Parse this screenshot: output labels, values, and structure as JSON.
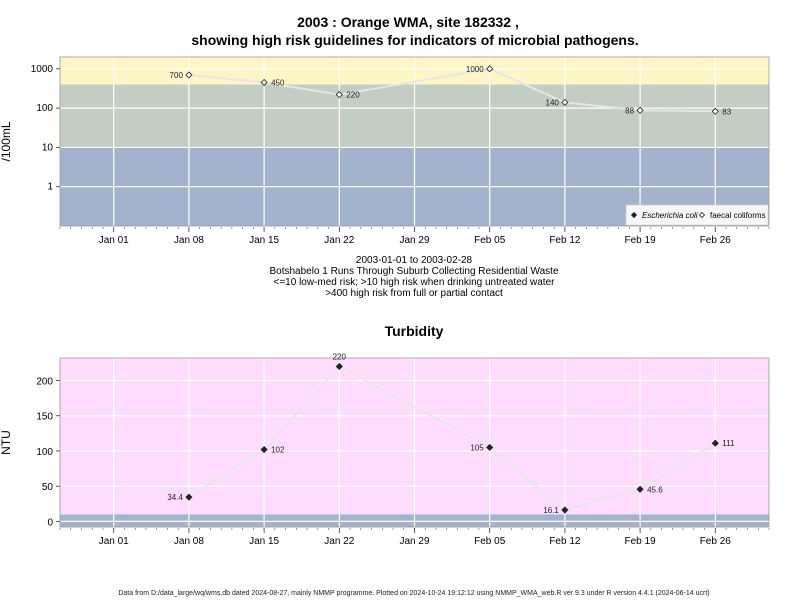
{
  "chart_data": [
    {
      "type": "line",
      "title_line1": "2003 : Orange WMA, site 182332 ,",
      "title_line2": "showing high risk guidelines for indicators of microbial pathogens.",
      "ylabel": "/100mL",
      "yscale": "log",
      "ylim": [
        0.1,
        2000
      ],
      "yticks": [
        {
          "value": 1,
          "label": "1"
        },
        {
          "value": 10,
          "label": "10"
        },
        {
          "value": 100,
          "label": "100"
        },
        {
          "value": 1000,
          "label": "1000"
        }
      ],
      "xlim": [
        "2002-12-27",
        "2003-03-03"
      ],
      "xticks": [
        {
          "date": "2003-01-01",
          "label": "Jan 01"
        },
        {
          "date": "2003-01-08",
          "label": "Jan 08"
        },
        {
          "date": "2003-01-15",
          "label": "Jan 15"
        },
        {
          "date": "2003-01-22",
          "label": "Jan 22"
        },
        {
          "date": "2003-01-29",
          "label": "Jan 29"
        },
        {
          "date": "2003-02-05",
          "label": "Feb 05"
        },
        {
          "date": "2003-02-12",
          "label": "Feb 12"
        },
        {
          "date": "2003-02-19",
          "label": "Feb 19"
        },
        {
          "date": "2003-02-26",
          "label": "Feb 26"
        }
      ],
      "bands": [
        {
          "from": 0.1,
          "to": 10,
          "color": "#a3b3cd"
        },
        {
          "from": 10,
          "to": 400,
          "color": "#c3cdc3"
        },
        {
          "from": 400,
          "to": 2000,
          "color": "#fff5c6"
        }
      ],
      "grid": true,
      "series": [
        {
          "name": "faecal coliforms",
          "marker": "open-diamond",
          "line_color": "#e6e6e6",
          "points": [
            {
              "x": "2003-01-08",
              "y": 700,
              "label": "700",
              "side": "left"
            },
            {
              "x": "2003-01-15",
              "y": 450,
              "label": "450",
              "side": "right"
            },
            {
              "x": "2003-01-22",
              "y": 220,
              "label": "220",
              "side": "right"
            },
            {
              "x": "2003-02-05",
              "y": 1000,
              "label": "1000",
              "side": "left"
            },
            {
              "x": "2003-02-12",
              "y": 140,
              "label": "140",
              "side": "left"
            },
            {
              "x": "2003-02-19",
              "y": 88,
              "label": "88",
              "side": "left"
            },
            {
              "x": "2003-02-26",
              "y": 83,
              "label": "83",
              "side": "right"
            }
          ]
        },
        {
          "name": "Escherichia coli",
          "marker": "filled-diamond",
          "points": []
        }
      ],
      "legend": {
        "position": "bottom-right",
        "items": [
          {
            "label": "Escherichia coli",
            "marker": "filled-diamond",
            "italic": true
          },
          {
            "label": "faecal coliforms",
            "marker": "open-diamond",
            "italic": false
          }
        ]
      },
      "caption": [
        "2003-01-01 to 2003-02-28",
        "Botshabelo 1 Runs Through Suburb Collecting Residential Waste",
        "<=10 low-med risk; >10 high risk when drinking untreated water",
        ">400 high risk from full or partial contact"
      ]
    },
    {
      "type": "line",
      "title": "Turbidity",
      "ylabel": "NTU",
      "yscale": "linear",
      "ylim": [
        -8,
        232
      ],
      "yticks": [
        {
          "value": 0,
          "label": "0"
        },
        {
          "value": 50,
          "label": "50"
        },
        {
          "value": 100,
          "label": "100"
        },
        {
          "value": 150,
          "label": "150"
        },
        {
          "value": 200,
          "label": "200"
        }
      ],
      "xlim": [
        "2002-12-27",
        "2003-03-03"
      ],
      "xticks": [
        {
          "date": "2003-01-01",
          "label": "Jan 01"
        },
        {
          "date": "2003-01-08",
          "label": "Jan 08"
        },
        {
          "date": "2003-01-15",
          "label": "Jan 15"
        },
        {
          "date": "2003-01-22",
          "label": "Jan 22"
        },
        {
          "date": "2003-01-29",
          "label": "Jan 29"
        },
        {
          "date": "2003-02-05",
          "label": "Feb 05"
        },
        {
          "date": "2003-02-12",
          "label": "Feb 12"
        },
        {
          "date": "2003-02-19",
          "label": "Feb 19"
        },
        {
          "date": "2003-02-26",
          "label": "Feb 26"
        }
      ],
      "bands": [
        {
          "from": -8,
          "to": 10,
          "color": "#a3b3cd"
        },
        {
          "from": 10,
          "to": 232,
          "color": "#fedcfe"
        }
      ],
      "grid": true,
      "series": [
        {
          "marker": "filled-diamond",
          "line_color": "#e6e6e6",
          "points": [
            {
              "x": "2003-01-08",
              "y": 34.4,
              "label": "34.4",
              "side": "left"
            },
            {
              "x": "2003-01-15",
              "y": 102,
              "label": "102",
              "side": "right"
            },
            {
              "x": "2003-01-22",
              "y": 220,
              "label": "220",
              "side": "above"
            },
            {
              "x": "2003-02-05",
              "y": 105,
              "label": "105",
              "side": "left"
            },
            {
              "x": "2003-02-12",
              "y": 16.1,
              "label": "16.1",
              "side": "left"
            },
            {
              "x": "2003-02-19",
              "y": 45.6,
              "label": "45.6",
              "side": "right"
            },
            {
              "x": "2003-02-26",
              "y": 111,
              "label": "111",
              "side": "right"
            }
          ]
        }
      ]
    }
  ],
  "footer": "Data from D:/data_large/wq/wms.db dated 2024-08-27, mainly NMMP programme. Plotted on 2024-10-24 19:12:12 using NMMP_WMA_web.R ver 9.3 under R version 4.4.1 (2024-06-14 ucrt)"
}
